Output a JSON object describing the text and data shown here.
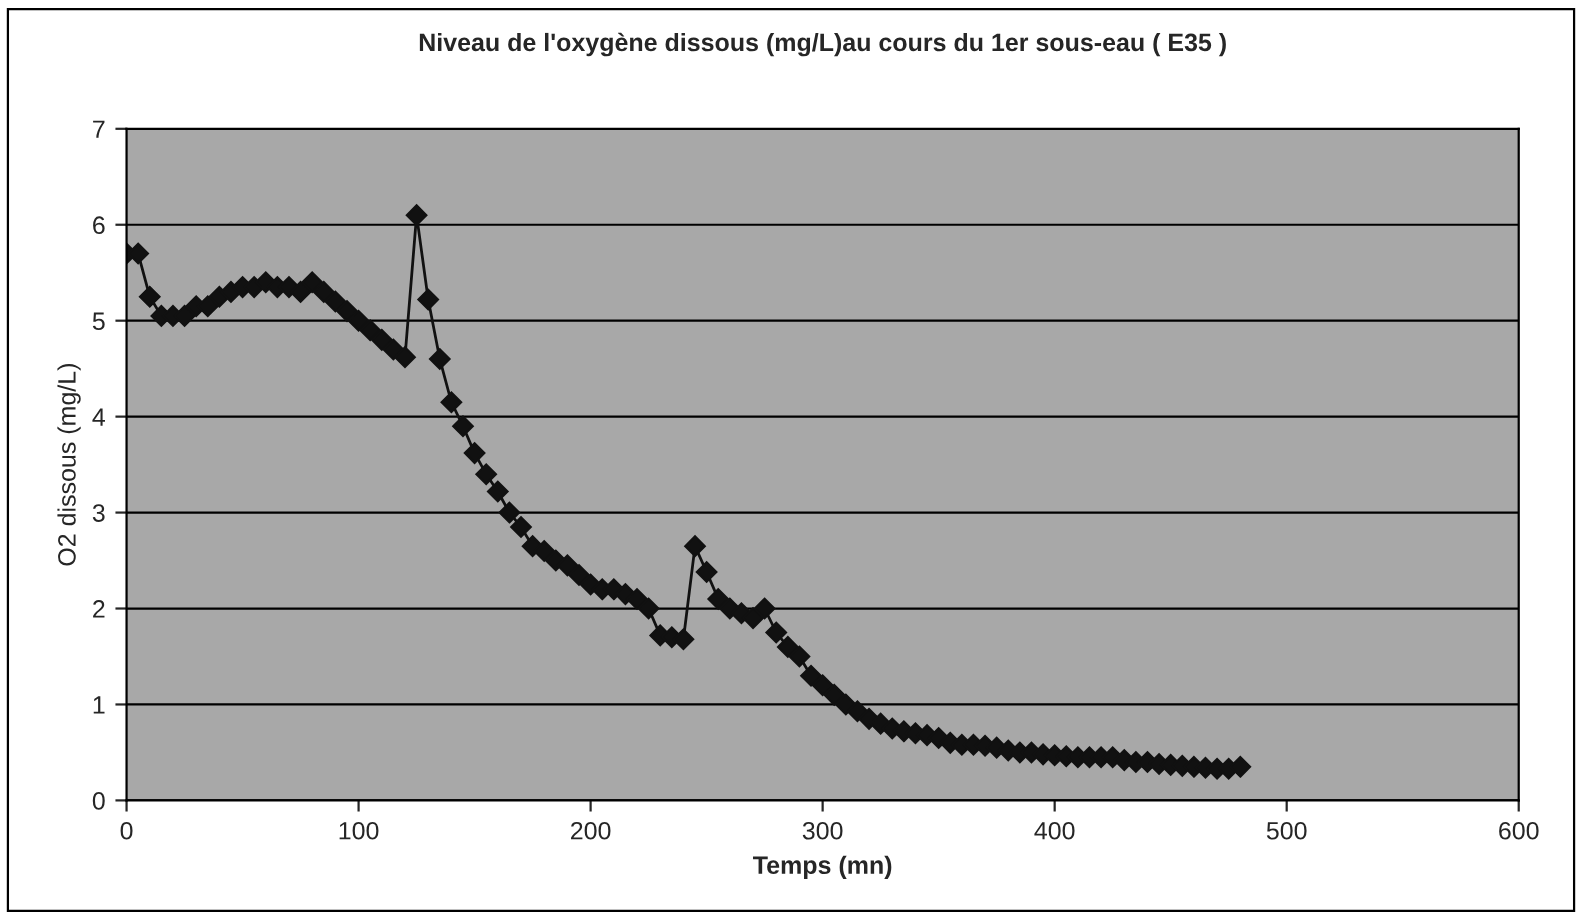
{
  "chart_data": {
    "type": "line",
    "title": "Niveau de l'oxygène dissous (mg/L)au cours du 1er sous-eau ( E35 )",
    "xlabel": "Temps (mn)",
    "ylabel": "O2 dissous (mg/L)",
    "x": [
      0,
      5,
      10,
      15,
      20,
      25,
      30,
      35,
      40,
      45,
      50,
      55,
      60,
      65,
      70,
      75,
      80,
      85,
      90,
      95,
      100,
      105,
      110,
      115,
      120,
      125,
      130,
      135,
      140,
      145,
      150,
      155,
      160,
      165,
      170,
      175,
      180,
      185,
      190,
      195,
      200,
      205,
      210,
      215,
      220,
      225,
      230,
      235,
      240,
      245,
      250,
      255,
      260,
      265,
      270,
      275,
      280,
      285,
      290,
      295,
      300,
      305,
      310,
      315,
      320,
      325,
      330,
      335,
      340,
      345,
      350,
      355,
      360,
      365,
      370,
      375,
      380,
      385,
      390,
      395,
      400,
      405,
      410,
      415,
      420,
      425,
      430,
      435,
      440,
      445,
      450,
      455,
      460,
      465,
      470,
      475,
      480
    ],
    "series": [
      {
        "color": "#111111",
        "values": [
          5.7,
          5.7,
          5.25,
          5.05,
          5.05,
          5.05,
          5.15,
          5.15,
          5.25,
          5.3,
          5.35,
          5.35,
          5.4,
          5.35,
          5.35,
          5.3,
          5.4,
          5.3,
          5.2,
          5.1,
          5.0,
          4.9,
          4.8,
          4.7,
          4.62,
          6.1,
          5.22,
          4.6,
          4.15,
          3.9,
          3.62,
          3.4,
          3.22,
          3.0,
          2.85,
          2.65,
          2.6,
          2.5,
          2.45,
          2.35,
          2.25,
          2.2,
          2.2,
          2.15,
          2.1,
          2.0,
          1.72,
          1.7,
          1.68,
          2.65,
          2.38,
          2.1,
          2.0,
          1.95,
          1.9,
          2.0,
          1.75,
          1.6,
          1.5,
          1.3,
          1.2,
          1.1,
          1.0,
          0.93,
          0.85,
          0.8,
          0.75,
          0.72,
          0.7,
          0.68,
          0.65,
          0.6,
          0.58,
          0.58,
          0.57,
          0.55,
          0.52,
          0.5,
          0.5,
          0.48,
          0.47,
          0.46,
          0.45,
          0.45,
          0.45,
          0.45,
          0.42,
          0.4,
          0.4,
          0.38,
          0.37,
          0.36,
          0.35,
          0.34,
          0.33,
          0.33,
          0.35
        ]
      }
    ],
    "xlim": [
      0,
      600
    ],
    "xticks": [
      0,
      100,
      200,
      300,
      400,
      500,
      600
    ],
    "ylim": [
      0,
      7
    ],
    "yticks": [
      0,
      1,
      2,
      3,
      4,
      5,
      6,
      7
    ],
    "grid": "y",
    "marker": "diamond",
    "line_style": "solid"
  }
}
